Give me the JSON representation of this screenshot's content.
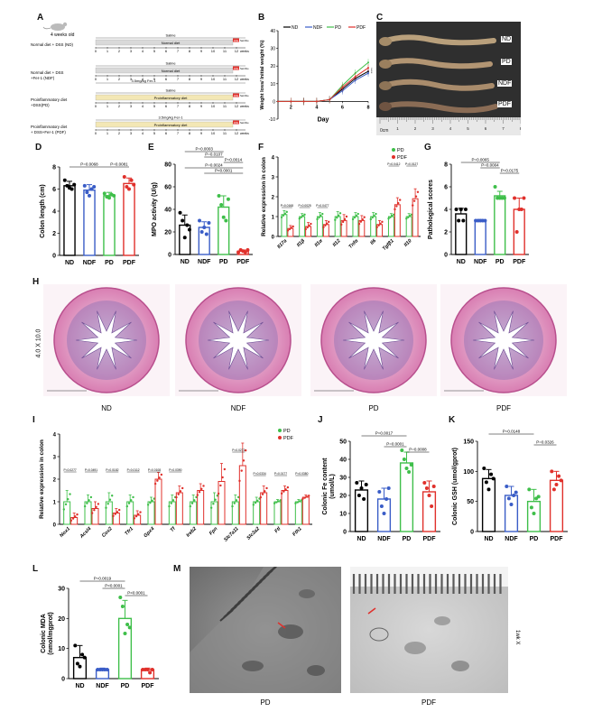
{
  "panel_letters": [
    "A",
    "B",
    "C",
    "D",
    "E",
    "F",
    "G",
    "H",
    "I",
    "J",
    "K",
    "L",
    "M"
  ],
  "panel_a": {
    "mouse_label": "4 weeks old",
    "groups": [
      {
        "label": [
          "Normal diet + DSS (ND)"
        ],
        "bar_top": "Saline",
        "bar_mid": "Normal diet",
        "bar_bot": "",
        "diet_color": "#d9d9d9"
      },
      {
        "label": [
          "Normal diet + DSS",
          "+Fer-1 (NDF)"
        ],
        "bar_top": "Saline",
        "bar_mid": "Normal diet",
        "bar_bot": "3.5mg/kg Fer-1",
        "diet_color": "#d9d9d9"
      },
      {
        "label": [
          "Proinflammatory diet",
          "+DSS(PD)"
        ],
        "bar_top": "Saline",
        "bar_mid": "Proinflammatory diet",
        "bar_bot": "",
        "diet_color": "#f3e7b5"
      },
      {
        "label": [
          "Proinflammatory diet",
          "+ DSS+Fer-1 (PDF)"
        ],
        "bar_top": "3.5mg/kg Fer-1",
        "bar_mid": "Proinflammatory diet",
        "bar_bot": "",
        "diet_color": "#f3e7b5"
      }
    ],
    "dss_box": "DSS",
    "dss_tail": "Sacrifice",
    "ticks": [
      "0",
      "1",
      "2",
      "3",
      "4",
      "5",
      "6",
      "7",
      "8",
      "9",
      "10",
      "11",
      "12"
    ],
    "unit": "weeks"
  },
  "panel_b": {
    "ylabel": "Weight loss/ Initial weight (%)",
    "xlabel": "Day",
    "legend": [
      "ND",
      "NDF",
      "PD",
      "PDF"
    ],
    "colors": [
      "#000000",
      "#3a5dc7",
      "#3fbf4a",
      "#e0302b"
    ],
    "xticks": [
      "2",
      "4",
      "6",
      "8"
    ],
    "yticks": [
      "-10",
      "0",
      "10",
      "20",
      "30",
      "40"
    ],
    "side_label": "****"
  },
  "panel_c": {
    "labels": [
      "ND",
      "PD",
      "NDF",
      "PDF"
    ],
    "ruler": "0cm"
  },
  "bar_colors": {
    "ND": "#000000",
    "NDF": "#3a5dc7",
    "PD": "#3fbf4a",
    "PDF": "#e0302b"
  },
  "panel_d": {
    "ylabel": "Colon length (cm)",
    "categories": [
      "ND",
      "NDF",
      "PD",
      "PDF"
    ],
    "yticks": [
      "0",
      "2",
      "4",
      "6",
      "8"
    ],
    "pvalues": [
      "P=0.0068",
      "P=0.0081"
    ]
  },
  "panel_e": {
    "ylabel": "MPO activity (U/g)",
    "categories": [
      "ND",
      "NDF",
      "PD",
      "PDF"
    ],
    "yticks": [
      "0",
      "20",
      "40",
      "60",
      "80"
    ],
    "pvalues": [
      "P=0.0003",
      "P=0.0107",
      "P=0.0014",
      "P=0.0024",
      "P<0.0001"
    ]
  },
  "panel_f": {
    "ylabel": "Relative expression in colon",
    "legend": [
      "PD",
      "PDF"
    ],
    "genes": [
      "Il17a",
      "Il1β",
      "Il1α",
      "Il12",
      "Tnfα",
      "Il6",
      "Tgfβ1",
      "Il10"
    ],
    "yticks": [
      "0",
      "1",
      "2",
      "3",
      "4"
    ],
    "pvalues": [
      "P=0.0168",
      "P=0.0025",
      "P=0.0477",
      "P=0.0412",
      "P=0.0127"
    ]
  },
  "panel_g": {
    "ylabel": "Pathological scores",
    "categories": [
      "ND",
      "NDF",
      "PD",
      "PDF"
    ],
    "yticks": [
      "0",
      "2",
      "4",
      "6",
      "8"
    ],
    "pvalues": [
      "P=0.0065",
      "P=0.0004",
      "P=0.0175"
    ]
  },
  "panel_h": {
    "mag": "4.0 X 10.0",
    "labels": [
      "ND",
      "NDF",
      "PD",
      "PDF"
    ]
  },
  "panel_i": {
    "ylabel": "Relative expression in colon",
    "legend": [
      "PD",
      "PDF"
    ],
    "genes": [
      "Nox1",
      "Acsl4",
      "Cox2",
      "Tfr1",
      "Gpx4",
      "Tf",
      "Ireb2",
      "Fpn",
      "Slc7a11",
      "Slc3a2",
      "Ftl",
      "Fth1"
    ],
    "yticks": [
      "0",
      "1",
      "2",
      "3",
      "4"
    ],
    "pvalues": [
      "P=0.0277",
      "P=0.0491",
      "P=0.0182",
      "P=0.0112",
      "P=0.0108",
      "P=0.0390",
      "P=0.0272",
      "P=0.0334",
      "P=0.0177",
      "P=0.0380"
    ]
  },
  "panel_j": {
    "ylabel": [
      "Colonic Fe content",
      "(umol/L)"
    ],
    "categories": [
      "ND",
      "NDF",
      "PD",
      "PDF"
    ],
    "yticks": [
      "0",
      "10",
      "20",
      "30",
      "40",
      "50"
    ],
    "pvalues": [
      "P=0.0017",
      "P=0.0001",
      "P=0.0008"
    ]
  },
  "panel_k": {
    "ylabel": "Colonic GSH (umol/gprot)",
    "categories": [
      "ND",
      "NDF",
      "PD",
      "PDF"
    ],
    "yticks": [
      "0",
      "50",
      "100",
      "150"
    ],
    "pvalues": [
      "P=0.0148",
      "P=0.0326"
    ]
  },
  "panel_l": {
    "ylabel": [
      "Colonic MDA",
      "(nmol/mgprot)"
    ],
    "categories": [
      "ND",
      "NDF",
      "PD",
      "PDF"
    ],
    "yticks": [
      "0",
      "10",
      "20",
      "30"
    ],
    "pvalues": [
      "P=0.0019",
      "P<0.0001",
      "P<0.0001"
    ]
  },
  "panel_m": {
    "labels": [
      "PD",
      "PDF"
    ],
    "scale": "1wk X"
  },
  "chart_data": [
    {
      "panel": "B",
      "type": "line",
      "xlabel": "Day",
      "ylabel": "Weight loss/ Initial weight (%)",
      "x": [
        0,
        1,
        2,
        3,
        4,
        5,
        6,
        7
      ],
      "ylim": [
        -10,
        40
      ],
      "series": [
        {
          "name": "ND",
          "values": [
            0,
            0,
            0,
            0,
            1,
            7,
            13,
            17
          ]
        },
        {
          "name": "NDF",
          "values": [
            0,
            0,
            0,
            0,
            1,
            6,
            12,
            16
          ]
        },
        {
          "name": "PD",
          "values": [
            0,
            0,
            0,
            0,
            1,
            9,
            16,
            22
          ]
        },
        {
          "name": "PDF",
          "values": [
            0,
            0,
            0,
            0,
            1,
            8,
            14,
            19
          ]
        }
      ]
    },
    {
      "panel": "D",
      "type": "bar",
      "categories": [
        "ND",
        "NDF",
        "PD",
        "PDF"
      ],
      "values": [
        6.3,
        5.9,
        5.4,
        6.5
      ],
      "errors": [
        0.4,
        0.5,
        0.3,
        0.5
      ],
      "ylim": [
        0,
        8
      ],
      "ylabel": "Colon length (cm)",
      "points": [
        [
          6.8,
          6.3,
          6.1,
          6.0,
          6.4
        ],
        [
          6.3,
          5.7,
          5.4,
          6.0,
          6.2
        ],
        [
          5.6,
          5.3,
          5.2,
          5.5,
          5.4
        ],
        [
          7.1,
          6.2,
          6.0,
          6.8,
          6.4
        ]
      ]
    },
    {
      "panel": "E",
      "type": "bar",
      "categories": [
        "ND",
        "NDF",
        "PD",
        "PDF"
      ],
      "values": [
        26,
        24,
        42,
        3
      ],
      "errors": [
        9,
        5,
        10,
        1
      ],
      "ylim": [
        0,
        80
      ],
      "ylabel": "MPO activity (U/g)",
      "points": [
        [
          37,
          30,
          15,
          26,
          22
        ],
        [
          30,
          20,
          24,
          18,
          28
        ],
        [
          52,
          44,
          33,
          30,
          49
        ],
        [
          2,
          4,
          3,
          2,
          4
        ]
      ]
    },
    {
      "panel": "F",
      "type": "bar",
      "categories": [
        "Il17a",
        "Il1β",
        "Il1α",
        "Il12",
        "Tnfα",
        "Il6",
        "Tgfβ1",
        "Il10"
      ],
      "ylim": [
        0,
        4
      ],
      "ylabel": "Relative expression in colon",
      "series": [
        {
          "name": "PD",
          "values": [
            1.1,
            1.0,
            1.0,
            1.0,
            1.0,
            1.0,
            1.0,
            1.0
          ],
          "errors": [
            0.2,
            0.15,
            0.2,
            0.25,
            0.2,
            0.2,
            0.15,
            0.15
          ]
        },
        {
          "name": "PDF",
          "values": [
            0.4,
            0.5,
            0.6,
            0.8,
            0.8,
            0.6,
            1.6,
            1.9
          ],
          "errors": [
            0.15,
            0.2,
            0.2,
            0.3,
            0.25,
            0.2,
            0.35,
            0.5
          ]
        }
      ]
    },
    {
      "panel": "G",
      "type": "bar",
      "categories": [
        "ND",
        "NDF",
        "PD",
        "PDF"
      ],
      "values": [
        3.6,
        3.0,
        5.2,
        4.0
      ],
      "errors": [
        0.5,
        0.1,
        0.4,
        1.0
      ],
      "ylim": [
        0,
        8
      ],
      "ylabel": "Pathological scores",
      "points": [
        [
          4,
          3,
          4,
          3,
          4
        ],
        [
          3,
          3,
          3,
          3,
          3
        ],
        [
          6,
          5,
          5,
          5,
          5
        ],
        [
          5,
          2,
          4,
          4,
          5
        ]
      ]
    },
    {
      "panel": "I",
      "type": "bar",
      "categories": [
        "Nox1",
        "Acsl4",
        "Cox2",
        "Tfr1",
        "Gpx4",
        "Tf",
        "Ireb2",
        "Fpn",
        "Slc7a11",
        "Slc3a2",
        "Ftl",
        "Fth1"
      ],
      "ylim": [
        0,
        4
      ],
      "ylabel": "Relative expression in colon",
      "series": [
        {
          "name": "PD",
          "values": [
            1.0,
            1.0,
            1.0,
            1.0,
            1.0,
            1.0,
            1.0,
            1.0,
            1.0,
            1.0,
            1.0,
            1.0
          ],
          "errors": [
            0.5,
            0.3,
            0.4,
            0.3,
            0.2,
            0.3,
            0.3,
            0.4,
            0.3,
            0.2,
            0.1,
            0.1
          ]
        },
        {
          "name": "PDF",
          "values": [
            0.3,
            0.7,
            0.5,
            0.4,
            2.0,
            1.4,
            1.5,
            1.9,
            2.6,
            1.4,
            1.5,
            1.2
          ],
          "errors": [
            0.2,
            0.3,
            0.2,
            0.2,
            0.3,
            0.3,
            0.3,
            0.8,
            1.0,
            0.3,
            0.2,
            0.1
          ]
        }
      ]
    },
    {
      "panel": "J",
      "type": "bar",
      "categories": [
        "ND",
        "NDF",
        "PD",
        "PDF"
      ],
      "values": [
        23,
        18,
        38,
        22
      ],
      "errors": [
        5,
        6,
        6,
        6
      ],
      "ylim": [
        0,
        50
      ],
      "ylabel": "Colonic Fe content (umol/L)",
      "points": [
        [
          27,
          20,
          24,
          18,
          26
        ],
        [
          22,
          14,
          10,
          18,
          24
        ],
        [
          45,
          40,
          35,
          33,
          37
        ],
        [
          27,
          24,
          20,
          14,
          25
        ]
      ]
    },
    {
      "panel": "K",
      "type": "bar",
      "categories": [
        "ND",
        "NDF",
        "PD",
        "PDF"
      ],
      "values": [
        88,
        60,
        50,
        85
      ],
      "errors": [
        15,
        15,
        20,
        15
      ],
      "ylim": [
        0,
        150
      ],
      "ylabel": "Colonic GSH (umol/gprot)",
      "points": [
        [
          105,
          82,
          70,
          95,
          88
        ],
        [
          75,
          55,
          45,
          60,
          65
        ],
        [
          70,
          40,
          30,
          55,
          58
        ],
        [
          100,
          70,
          78,
          92,
          85
        ]
      ]
    },
    {
      "panel": "L",
      "type": "bar",
      "categories": [
        "ND",
        "NDF",
        "PD",
        "PDF"
      ],
      "values": [
        7,
        3,
        20,
        3
      ],
      "errors": [
        4,
        0.5,
        6,
        0.5
      ],
      "ylim": [
        0,
        30
      ],
      "ylabel": "Colonic MDA (nmol/mgprot)",
      "points": [
        [
          11,
          5,
          4,
          8,
          7
        ],
        [
          3,
          3,
          3,
          3,
          3
        ],
        [
          27,
          24,
          15,
          18,
          17
        ],
        [
          3,
          3,
          3,
          2,
          3
        ]
      ]
    }
  ]
}
